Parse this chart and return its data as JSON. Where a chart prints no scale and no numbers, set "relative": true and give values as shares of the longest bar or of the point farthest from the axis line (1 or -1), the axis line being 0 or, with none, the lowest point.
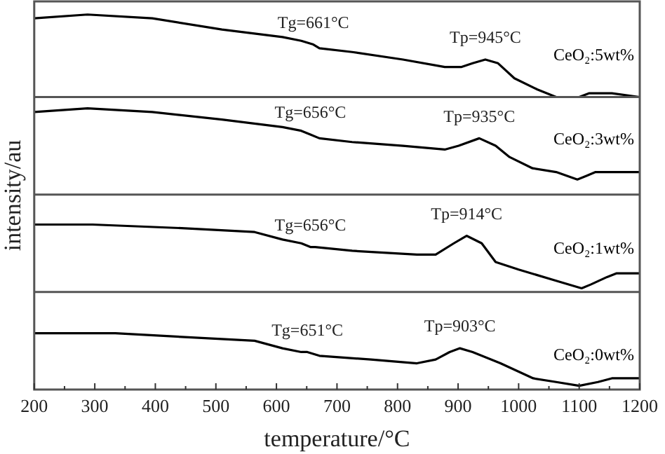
{
  "chart_data": {
    "type": "line",
    "relative": true,
    "legend": false,
    "marker": "none",
    "xlim": [
      200,
      1200
    ],
    "xlabel": "temperature/°C",
    "ylabel": "intensity/au",
    "xticks": [
      200,
      {
        "value": 250,
        "label": null
      },
      300,
      {
        "value": 350,
        "label": null
      },
      400,
      {
        "value": 450,
        "label": null
      },
      500,
      {
        "value": 550,
        "label": null
      },
      600,
      {
        "value": 650,
        "label": null
      },
      700,
      {
        "value": 750,
        "label": null
      },
      800,
      {
        "value": 850,
        "label": null
      },
      900,
      {
        "value": 950,
        "label": null
      },
      1000,
      {
        "value": 1050,
        "label": null
      },
      1100,
      {
        "value": 1150,
        "label": null
      },
      1200
    ],
    "series": [
      {
        "name": "CeO₂:5wt%",
        "color": "#000000",
        "x": [
          200,
          288,
          395,
          510,
          610,
          641,
          661,
          671,
          725,
          809,
          878,
          905,
          924,
          945,
          966,
          993,
          1031,
          1062,
          1085,
          1100,
          1116,
          1154,
          1200
        ],
        "values": [
          0.99,
          1.0,
          0.99,
          0.96,
          0.94,
          0.93,
          0.92,
          0.91,
          0.9,
          0.88,
          0.86,
          0.86,
          0.87,
          0.88,
          0.87,
          0.83,
          0.8,
          0.78,
          0.78,
          0.78,
          0.79,
          0.79,
          0.78
        ]
      },
      {
        "name": "CeO₂:3wt%",
        "color": "#000000",
        "x": [
          200,
          288,
          395,
          510,
          610,
          641,
          656,
          671,
          725,
          809,
          878,
          901,
          935,
          962,
          985,
          1023,
          1062,
          1097,
          1112,
          1127,
          1200
        ],
        "values": [
          0.74,
          0.75,
          0.74,
          0.72,
          0.7,
          0.69,
          0.68,
          0.67,
          0.66,
          0.65,
          0.64,
          0.65,
          0.67,
          0.65,
          0.62,
          0.59,
          0.58,
          0.56,
          0.57,
          0.58,
          0.58
        ]
      },
      {
        "name": "CeO₂:1wt%",
        "color": "#000000",
        "x": [
          200,
          296,
          449,
          564,
          610,
          641,
          656,
          664,
          725,
          832,
          863,
          893,
          914,
          939,
          962,
          1000,
          1062,
          1104,
          1119,
          1146,
          1162,
          1200
        ],
        "values": [
          0.44,
          0.44,
          0.43,
          0.42,
          0.4,
          0.39,
          0.38,
          0.38,
          0.37,
          0.36,
          0.36,
          0.39,
          0.41,
          0.39,
          0.34,
          0.32,
          0.29,
          0.27,
          0.28,
          0.3,
          0.31,
          0.31
        ]
      },
      {
        "name": "CeO₂:0wt%",
        "color": "#000000",
        "x": [
          200,
          334,
          449,
          564,
          610,
          641,
          651,
          671,
          756,
          832,
          863,
          886,
          903,
          924,
          970,
          1024,
          1062,
          1100,
          1131,
          1154,
          1200
        ],
        "values": [
          0.15,
          0.15,
          0.14,
          0.13,
          0.11,
          0.1,
          0.1,
          0.09,
          0.08,
          0.07,
          0.08,
          0.1,
          0.11,
          0.1,
          0.07,
          0.03,
          0.02,
          0.01,
          0.02,
          0.03,
          0.03
        ]
      }
    ],
    "ref_lines": [
      {
        "axis": "y",
        "value": 0.78,
        "color": "#555555"
      },
      {
        "axis": "y",
        "value": 0.52,
        "color": "#555555"
      },
      {
        "axis": "y",
        "value": 0.26,
        "color": "#555555"
      }
    ],
    "annotations": [
      {
        "text": "Tg=661°C",
        "x": 661,
        "y": 0.92
      },
      {
        "text": "Tp=945°C",
        "x": 945,
        "y": 0.88
      },
      {
        "text": "Tg=656°C",
        "x": 656,
        "y": 0.68
      },
      {
        "text": "Tp=935°C",
        "x": 935,
        "y": 0.67
      },
      {
        "text": "Tg=656°C",
        "x": 656,
        "y": 0.38
      },
      {
        "text": "Tp=914°C",
        "x": 914,
        "y": 0.41
      },
      {
        "text": "Tg=651°C",
        "x": 651,
        "y": 0.1
      },
      {
        "text": "Tp=903°C",
        "x": 903,
        "y": 0.11
      }
    ]
  }
}
